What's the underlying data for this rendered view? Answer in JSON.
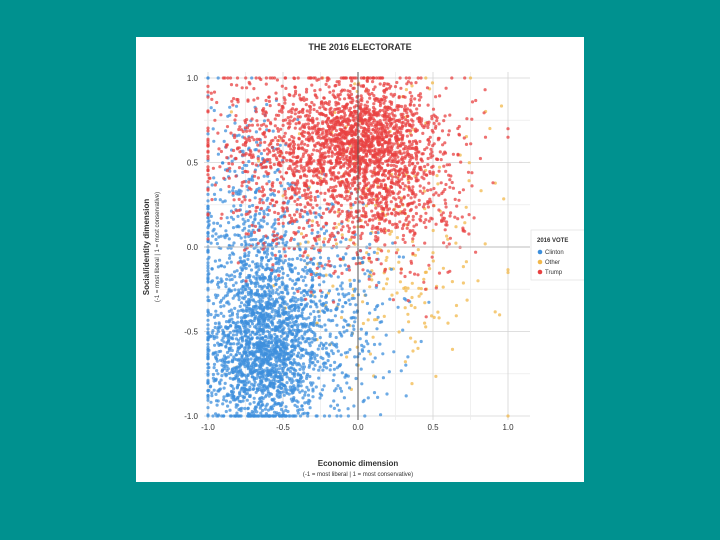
{
  "chart_data": {
    "type": "scatter",
    "title": "THE 2016 ELECTORATE",
    "xlabel": "Economic dimension",
    "xlabel_sub": "(-1 = most liberal | 1 = most conservative)",
    "ylabel": "Social/identity dimension",
    "ylabel_sub": "(-1 = most liberal | 1 = most conservative)",
    "xlim": [
      -1.0,
      1.0
    ],
    "ylim": [
      -1.0,
      1.0
    ],
    "xticks": [
      "-1.0",
      "-0.5",
      "0.0",
      "0.5",
      "1.0"
    ],
    "yticks": [
      "-1.0",
      "-0.5",
      "0.0",
      "0.5",
      "1.0"
    ],
    "grid": true,
    "legend": {
      "title": "2016 VOTE",
      "position": "right"
    },
    "series": [
      {
        "name": "Clinton",
        "color": "#3d8fdc",
        "clusters": [
          {
            "cx": -0.65,
            "cy": -0.65,
            "sx": 0.18,
            "sy": 0.22,
            "n": 1500
          },
          {
            "cx": -0.55,
            "cy": -0.25,
            "sx": 0.25,
            "sy": 0.25,
            "n": 650
          },
          {
            "cx": -0.75,
            "cy": 0.2,
            "sx": 0.18,
            "sy": 0.3,
            "n": 320
          },
          {
            "cx": -0.1,
            "cy": -0.5,
            "sx": 0.2,
            "sy": 0.3,
            "n": 250
          }
        ],
        "x": [
          -1.0,
          -1.0,
          -1.0,
          -0.98,
          -0.97,
          -1.0,
          -0.99,
          -1.0,
          -1.0,
          -1.0
        ],
        "y": [
          -0.95,
          -0.75,
          -0.55,
          -0.4,
          -0.2,
          0.0,
          0.2,
          0.35,
          -0.85,
          -0.65
        ]
      },
      {
        "name": "Other",
        "color": "#f2b84b",
        "clusters": [
          {
            "cx": 0.15,
            "cy": 0.1,
            "sx": 0.35,
            "sy": 0.45,
            "n": 260
          }
        ],
        "x": [
          0.75,
          0.4,
          0.6,
          1.0,
          0.8
        ],
        "y": [
          1.0,
          -0.6,
          -0.45,
          -1.0,
          -0.2
        ]
      },
      {
        "name": "Trump",
        "color": "#e84141",
        "clusters": [
          {
            "cx": 0.05,
            "cy": 0.62,
            "sx": 0.25,
            "sy": 0.18,
            "n": 1500
          },
          {
            "cx": -0.45,
            "cy": 0.55,
            "sx": 0.3,
            "sy": 0.25,
            "n": 700
          },
          {
            "cx": 0.3,
            "cy": 0.25,
            "sx": 0.2,
            "sy": 0.2,
            "n": 300
          },
          {
            "cx": -0.1,
            "cy": 0.2,
            "sx": 0.3,
            "sy": 0.2,
            "n": 250
          }
        ],
        "x": [
          0.85,
          0.9,
          1.0,
          0.6,
          0.45
        ],
        "y": [
          0.65,
          0.38,
          0.65,
          -0.15,
          -0.25
        ]
      }
    ]
  }
}
